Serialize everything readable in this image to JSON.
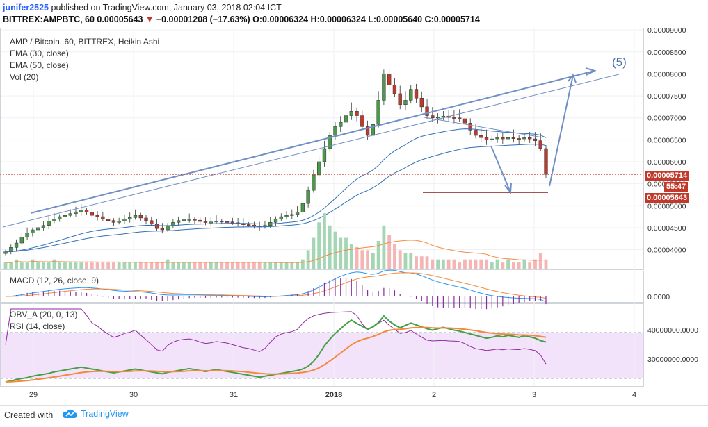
{
  "header": {
    "user": "junifer2525",
    "published": "published on TradingView.com, January 03, 2018 02:04 ICT",
    "symbol_line_prefix": "BITTREX:AMPBTC, 60  0.00005643",
    "change": "−0.00001208 (−17.63%)",
    "ohlc": "O:0.00006324 H:0.00006324 L:0.00005640 C:0.00005714"
  },
  "legend": {
    "title": "AMP / Bitcoin, 60, BITTREX, Heikin Ashi",
    "ema30": "EMA (30, close)",
    "ema50": "EMA (50, close)",
    "vol": "Vol (20)",
    "macd": "MACD (12, 26, close, 9)",
    "obv": "OBV_A (20, 0, 13)",
    "rsi": "RSI (14, close)"
  },
  "annotation": "(5)",
  "price_tags": {
    "last": "0.00005714",
    "countdown": "55:47",
    "current": "0.00005643"
  },
  "footer": {
    "created": "Created with",
    "brand": "TradingView"
  },
  "colors": {
    "up": "#4a9a4a",
    "down": "#c0392b",
    "ema30": "#2f6fb5",
    "ema50": "#2f6fb5",
    "orange": "#f5893b",
    "purple": "#8e2a9f",
    "green": "#43a047",
    "rsi_band": "#f3e3fa",
    "vol_up": "#a5d6b4",
    "vol_down": "#f5b5b5"
  },
  "chart_data": [
    {
      "type": "candlestick",
      "title": "AMP / Bitcoin, 60, BITTREX, Heikin Ashi",
      "x_ticks": [
        "29",
        "30",
        "31",
        "2018",
        "2",
        "3",
        "4"
      ],
      "y_ticks": [
        "0.00009000",
        "0.00008500",
        "0.00008000",
        "0.00007500",
        "0.00007000",
        "0.00006500",
        "0.00006000",
        "0.00005500",
        "0.00005000",
        "0.00004500",
        "0.00004000"
      ],
      "ylim": [
        3.55e-05,
        9.05e-05
      ],
      "close": [
        3.95e-05,
        4.05e-05,
        4.15e-05,
        4.28e-05,
        4.38e-05,
        4.45e-05,
        4.5e-05,
        4.55e-05,
        4.65e-05,
        4.7e-05,
        4.75e-05,
        4.78e-05,
        4.82e-05,
        4.86e-05,
        4.9e-05,
        4.85e-05,
        4.78e-05,
        4.75e-05,
        4.7e-05,
        4.66e-05,
        4.62e-05,
        4.65e-05,
        4.7e-05,
        4.73e-05,
        4.78e-05,
        4.72e-05,
        4.66e-05,
        4.58e-05,
        4.48e-05,
        4.45e-05,
        4.55e-05,
        4.62e-05,
        4.66e-05,
        4.68e-05,
        4.69e-05,
        4.67e-05,
        4.64e-05,
        4.62e-05,
        4.63e-05,
        4.65e-05,
        4.64e-05,
        4.63e-05,
        4.61e-05,
        4.59e-05,
        4.57e-05,
        4.56e-05,
        4.54e-05,
        4.52e-05,
        4.55e-05,
        4.62e-05,
        4.7e-05,
        4.75e-05,
        4.78e-05,
        4.8e-05,
        4.85e-05,
        5.05e-05,
        5.35e-05,
        5.7e-05,
        6e-05,
        6.3e-05,
        6.6e-05,
        6.8e-05,
        6.9e-05,
        7.05e-05,
        7.15e-05,
        7.05e-05,
        6.8e-05,
        6.6e-05,
        6.85e-05,
        7.4e-05,
        8e-05,
        7.75e-05,
        7.55e-05,
        7.3e-05,
        7.4e-05,
        7.65e-05,
        7.45e-05,
        7.25e-05,
        7.05e-05,
        7e-05,
        7.02e-05,
        7.04e-05,
        7.01e-05,
        7e-05,
        6.98e-05,
        6.88e-05,
        6.72e-05,
        6.6e-05,
        6.55e-05,
        6.5e-05,
        6.52e-05,
        6.55e-05,
        6.52e-05,
        6.55e-05,
        6.53e-05,
        6.52e-05,
        6.55e-05,
        6.52e-05,
        6.48e-05,
        6.3e-05,
        5.71e-05
      ],
      "series_names": [
        "EMA (30, close)",
        "EMA (50, close)"
      ]
    },
    {
      "type": "bar",
      "title": "Vol (20)",
      "values": [
        2,
        2,
        3,
        2,
        2,
        3,
        2,
        2,
        2,
        3,
        2,
        2,
        2,
        2,
        2,
        2,
        2,
        2,
        2,
        2,
        2,
        2,
        2,
        2,
        2,
        2,
        2,
        2,
        2,
        2,
        3,
        2,
        2,
        2,
        2,
        2,
        2,
        2,
        2,
        2,
        2,
        2,
        2,
        2,
        2,
        2,
        2,
        2,
        2,
        2,
        2,
        2,
        2,
        2,
        2,
        3,
        6,
        10,
        15,
        18,
        14,
        12,
        10,
        10,
        8,
        7,
        6,
        6,
        5,
        9,
        14,
        11,
        8,
        6,
        5,
        5,
        4,
        4,
        4,
        3,
        3,
        3,
        3,
        3,
        2,
        3,
        3,
        3,
        3,
        3,
        2,
        3,
        2,
        3,
        2,
        2,
        3,
        2,
        3,
        5,
        3
      ]
    },
    {
      "type": "line",
      "title": "MACD (12, 26, close, 9)",
      "y_ticks": [
        "0.0000"
      ]
    },
    {
      "type": "line",
      "title": "OBV_A (20, 0, 13) / RSI (14, close)",
      "y_ticks": [
        "40000000.0000",
        "30000000.0000"
      ]
    }
  ]
}
